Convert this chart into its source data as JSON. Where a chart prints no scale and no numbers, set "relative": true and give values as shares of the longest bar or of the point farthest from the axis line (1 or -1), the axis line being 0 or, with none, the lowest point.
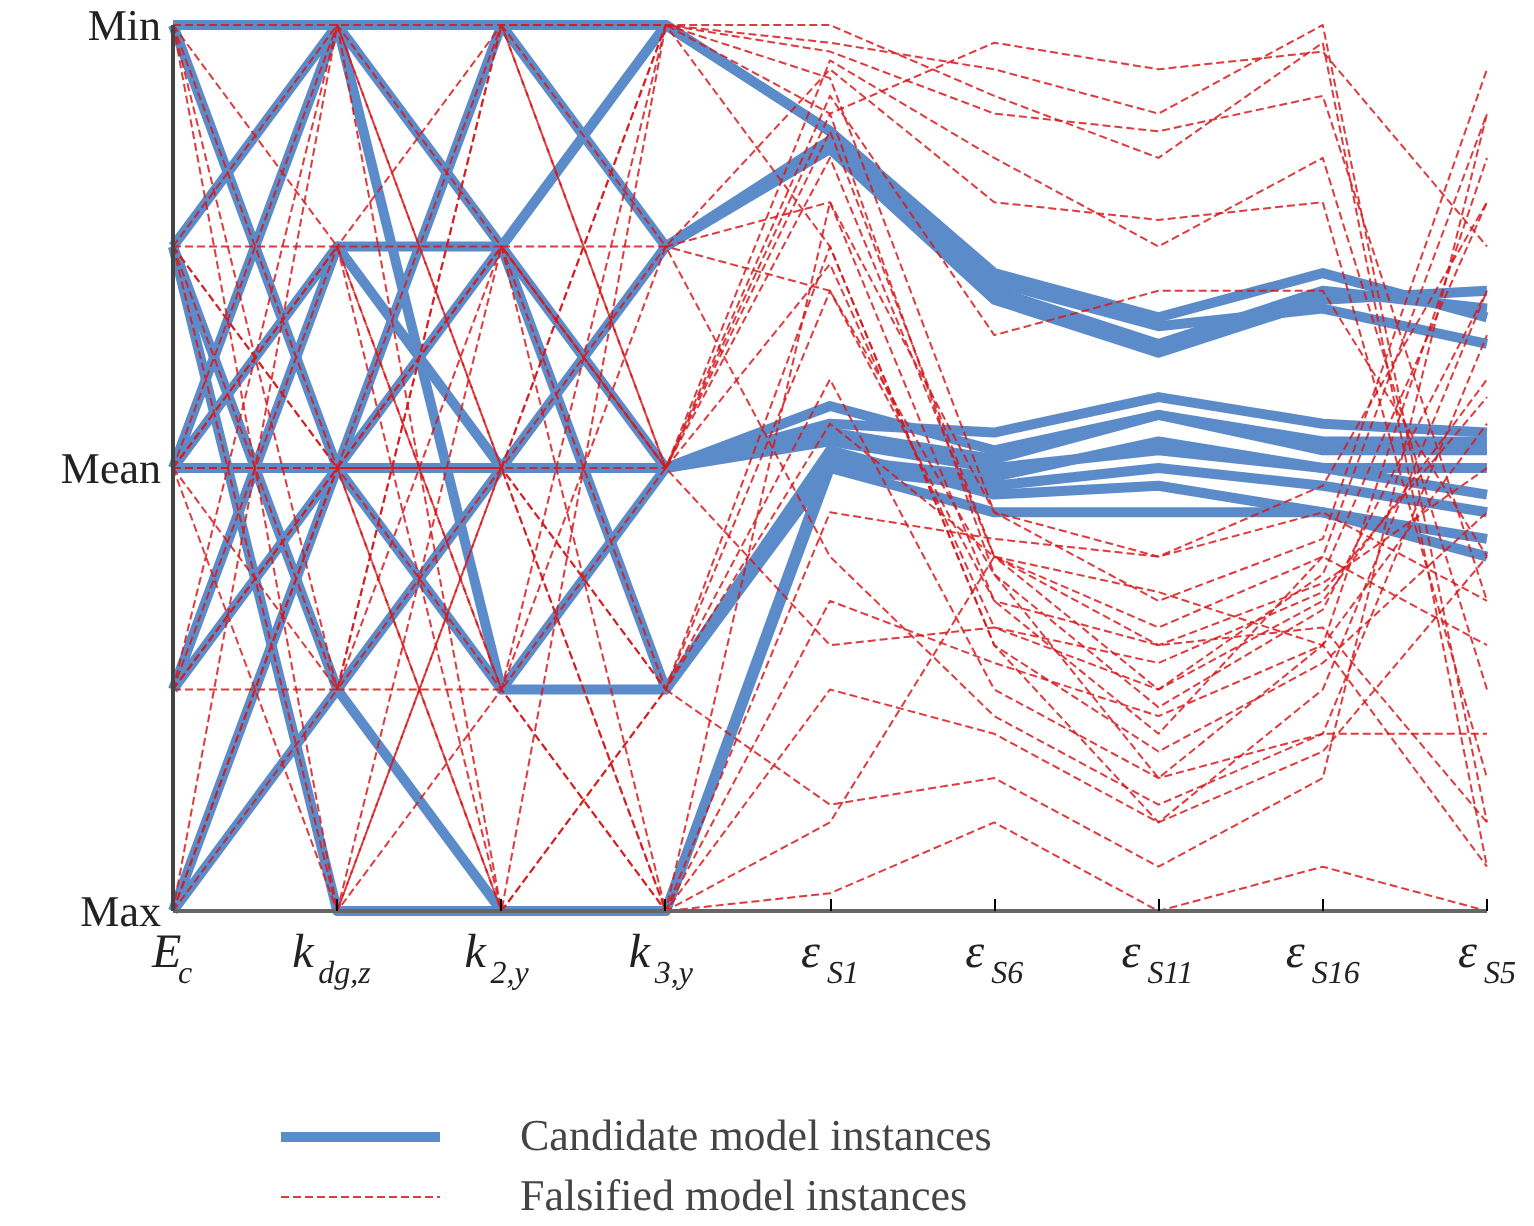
{
  "chart_data": {
    "type": "line",
    "categories": [
      "E$_{c}$",
      "k$_{dg,z}$",
      "k$_{2,y}$",
      "k$_{3,y}$",
      "ε$_{S1}$",
      "ε$_{S6}$",
      "ε$_{S11}$",
      "ε$_{S16}$",
      "ε$_{S5}$"
    ],
    "relative": true,
    "annotations": [
      "Min",
      "Mean",
      "Max"
    ],
    "legend": "bottom",
    "series": [
      {
        "name": "Candidate model instances",
        "color": "#5b8bc9",
        "line_style": "solid",
        "values": [
          1,
          1,
          0.75,
          1,
          0.88,
          0.7,
          0.64,
          0.7,
          0.68
        ]
      },
      {
        "color": "#5b8bc9",
        "line_style": "solid",
        "values": [
          0.75,
          1,
          1,
          0.75,
          0.87,
          0.71,
          0.66,
          0.68,
          0.64
        ]
      },
      {
        "color": "#5b8bc9",
        "line_style": "solid",
        "values": [
          0.5,
          0.75,
          0.5,
          0.5,
          0.55,
          0.54,
          0.58,
          0.55,
          0.54
        ]
      },
      {
        "color": "#5b8bc9",
        "line_style": "solid",
        "values": [
          0.25,
          0.5,
          0.75,
          0.5,
          0.53,
          0.5,
          0.52,
          0.5,
          0.5
        ]
      },
      {
        "color": "#5b8bc9",
        "line_style": "solid",
        "values": [
          0,
          0.25,
          0,
          0,
          0.5,
          0.48,
          0.5,
          0.48,
          0.45
        ]
      },
      {
        "color": "#5b8bc9",
        "line_style": "solid",
        "values": [
          1,
          0.5,
          0.25,
          0.5,
          0.57,
          0.52,
          0.56,
          0.52,
          0.52
        ]
      },
      {
        "color": "#5b8bc9",
        "line_style": "solid",
        "values": [
          0.75,
          0.25,
          0.5,
          0.75,
          0.86,
          0.69,
          0.63,
          0.69,
          0.7
        ]
      },
      {
        "color": "#5b8bc9",
        "line_style": "solid",
        "values": [
          0.5,
          1,
          0.25,
          0.25,
          0.52,
          0.47,
          0.48,
          0.45,
          0.4
        ]
      },
      {
        "color": "#5b8bc9",
        "line_style": "solid",
        "values": [
          0,
          0.5,
          1,
          1,
          0.88,
          0.72,
          0.67,
          0.72,
          0.67
        ]
      },
      {
        "color": "#5b8bc9",
        "line_style": "solid",
        "values": [
          0.5,
          0.5,
          0.5,
          0.5,
          0.54,
          0.51,
          0.56,
          0.53,
          0.53
        ]
      },
      {
        "color": "#5b8bc9",
        "line_style": "solid",
        "values": [
          0.25,
          0.75,
          0.75,
          0.25,
          0.5,
          0.45,
          0.45,
          0.45,
          0.42
        ]
      },
      {
        "color": "#5b8bc9",
        "line_style": "solid",
        "values": [
          0.75,
          0,
          0,
          0,
          0.51,
          0.49,
          0.53,
          0.5,
          0.47
        ]
      },
      {
        "name": "Falsified model instances",
        "color": "#d7191c",
        "line_style": "dashed",
        "values": [
          1,
          1,
          1,
          1,
          0.98,
          0.95,
          0.9,
          1,
          0.1
        ]
      },
      {
        "color": "#d7191c",
        "line_style": "dashed",
        "values": [
          0.75,
          0.5,
          1,
          1,
          1,
          0.92,
          0.85,
          0.98,
          0.05
        ]
      },
      {
        "color": "#d7191c",
        "line_style": "dashed",
        "values": [
          0.5,
          0.75,
          0.75,
          0.5,
          0.96,
          0.85,
          0.75,
          0.85,
          0.25
        ]
      },
      {
        "color": "#d7191c",
        "line_style": "dashed",
        "values": [
          0,
          0.5,
          0.25,
          0,
          0.8,
          0.35,
          0.2,
          0.4,
          0.9
        ]
      },
      {
        "color": "#d7191c",
        "line_style": "dashed",
        "values": [
          0.25,
          0.25,
          0.5,
          0.5,
          0.85,
          0.4,
          0.25,
          0.38,
          0.8
        ]
      },
      {
        "color": "#d7191c",
        "line_style": "dashed",
        "values": [
          1,
          0,
          0.5,
          0.75,
          0.7,
          0.38,
          0.15,
          0.3,
          0.85
        ]
      },
      {
        "color": "#d7191c",
        "line_style": "dashed",
        "values": [
          0.5,
          0.5,
          0,
          0.25,
          0.75,
          0.3,
          0.1,
          0.25,
          0.7
        ]
      },
      {
        "color": "#d7191c",
        "line_style": "dashed",
        "values": [
          0.75,
          0.75,
          0.25,
          1,
          0.94,
          0.45,
          0.35,
          0.42,
          0.95
        ]
      },
      {
        "color": "#d7191c",
        "line_style": "dashed",
        "values": [
          0,
          1,
          0.75,
          0,
          0.45,
          0.42,
          0.4,
          0.45,
          0.35
        ]
      },
      {
        "color": "#d7191c",
        "line_style": "dashed",
        "values": [
          0.5,
          0.25,
          1,
          0.5,
          0.92,
          0.65,
          0.7,
          0.7,
          0.4
        ]
      },
      {
        "color": "#d7191c",
        "line_style": "dashed",
        "values": [
          0.25,
          0.5,
          0.5,
          0,
          0.35,
          0.28,
          0.22,
          0.3,
          0.55
        ]
      },
      {
        "color": "#d7191c",
        "line_style": "dashed",
        "values": [
          1,
          0.75,
          0,
          0.25,
          0.12,
          0.15,
          0.05,
          0.15,
          0.9
        ]
      },
      {
        "color": "#d7191c",
        "line_style": "dashed",
        "values": [
          0.75,
          0.5,
          0.75,
          0.75,
          0.4,
          0.22,
          0.12,
          0.2,
          0.65
        ]
      },
      {
        "color": "#d7191c",
        "line_style": "dashed",
        "values": [
          0,
          0,
          0.5,
          1,
          0.75,
          0.3,
          0.18,
          0.28,
          0.45
        ]
      },
      {
        "color": "#d7191c",
        "line_style": "dashed",
        "values": [
          0.5,
          1,
          0.5,
          0,
          0.1,
          0.4,
          0.3,
          0.37,
          0.5
        ]
      },
      {
        "color": "#d7191c",
        "line_style": "dashed",
        "values": [
          0.25,
          0.75,
          1,
          0.5,
          0.88,
          0.4,
          0.32,
          0.4,
          0.3
        ]
      },
      {
        "color": "#d7191c",
        "line_style": "dashed",
        "values": [
          1,
          0.25,
          0.25,
          0.5,
          0.3,
          0.32,
          0.25,
          0.35,
          0.6
        ]
      },
      {
        "color": "#d7191c",
        "line_style": "dashed",
        "values": [
          0.75,
          0,
          0.75,
          0.25,
          0.6,
          0.25,
          0.15,
          0.2,
          0.2
        ]
      },
      {
        "color": "#d7191c",
        "line_style": "dashed",
        "values": [
          0,
          0.5,
          0,
          1,
          0.9,
          0.98,
          0.95,
          0.97,
          0.75
        ]
      },
      {
        "color": "#d7191c",
        "line_style": "dashed",
        "values": [
          0.5,
          0.75,
          0.25,
          0.75,
          0.95,
          0.8,
          0.78,
          0.8,
          0.15
        ]
      },
      {
        "color": "#d7191c",
        "line_style": "dashed",
        "values": [
          0.25,
          1,
          0,
          0,
          0.02,
          0.1,
          0,
          0.05,
          0
        ]
      },
      {
        "color": "#d7191c",
        "line_style": "dashed",
        "values": [
          0.5,
          0.5,
          0.5,
          0.25,
          0.7,
          0.35,
          0.3,
          0.32,
          0.1
        ]
      },
      {
        "color": "#d7191c",
        "line_style": "dashed",
        "values": [
          0.75,
          0.25,
          0.75,
          0.5,
          0.9,
          0.38,
          0.23,
          0.34,
          0.7
        ]
      },
      {
        "color": "#d7191c",
        "line_style": "dashed",
        "values": [
          1,
          0.5,
          0.5,
          1,
          0.97,
          0.9,
          0.88,
          0.92,
          0.35
        ]
      },
      {
        "color": "#d7191c",
        "line_style": "dashed",
        "values": [
          0,
          0.25,
          1,
          0.75,
          0.8,
          0.45,
          0.4,
          0.48,
          0.8
        ]
      },
      {
        "color": "#d7191c",
        "line_style": "dashed",
        "values": [
          0.5,
          0,
          0.25,
          0,
          0.25,
          0.2,
          0.1,
          0.18,
          0.4
        ]
      },
      {
        "color": "#d7191c",
        "line_style": "dashed",
        "values": [
          0.25,
          0.5,
          0.75,
          0.5,
          0.73,
          0.32,
          0.28,
          0.36,
          0.58
        ]
      },
      {
        "color": "#d7191c",
        "line_style": "dashed",
        "values": [
          0.75,
          1,
          0.5,
          0.25,
          0.55,
          0.4,
          0.36,
          0.3,
          0.05
        ]
      }
    ]
  }
}
